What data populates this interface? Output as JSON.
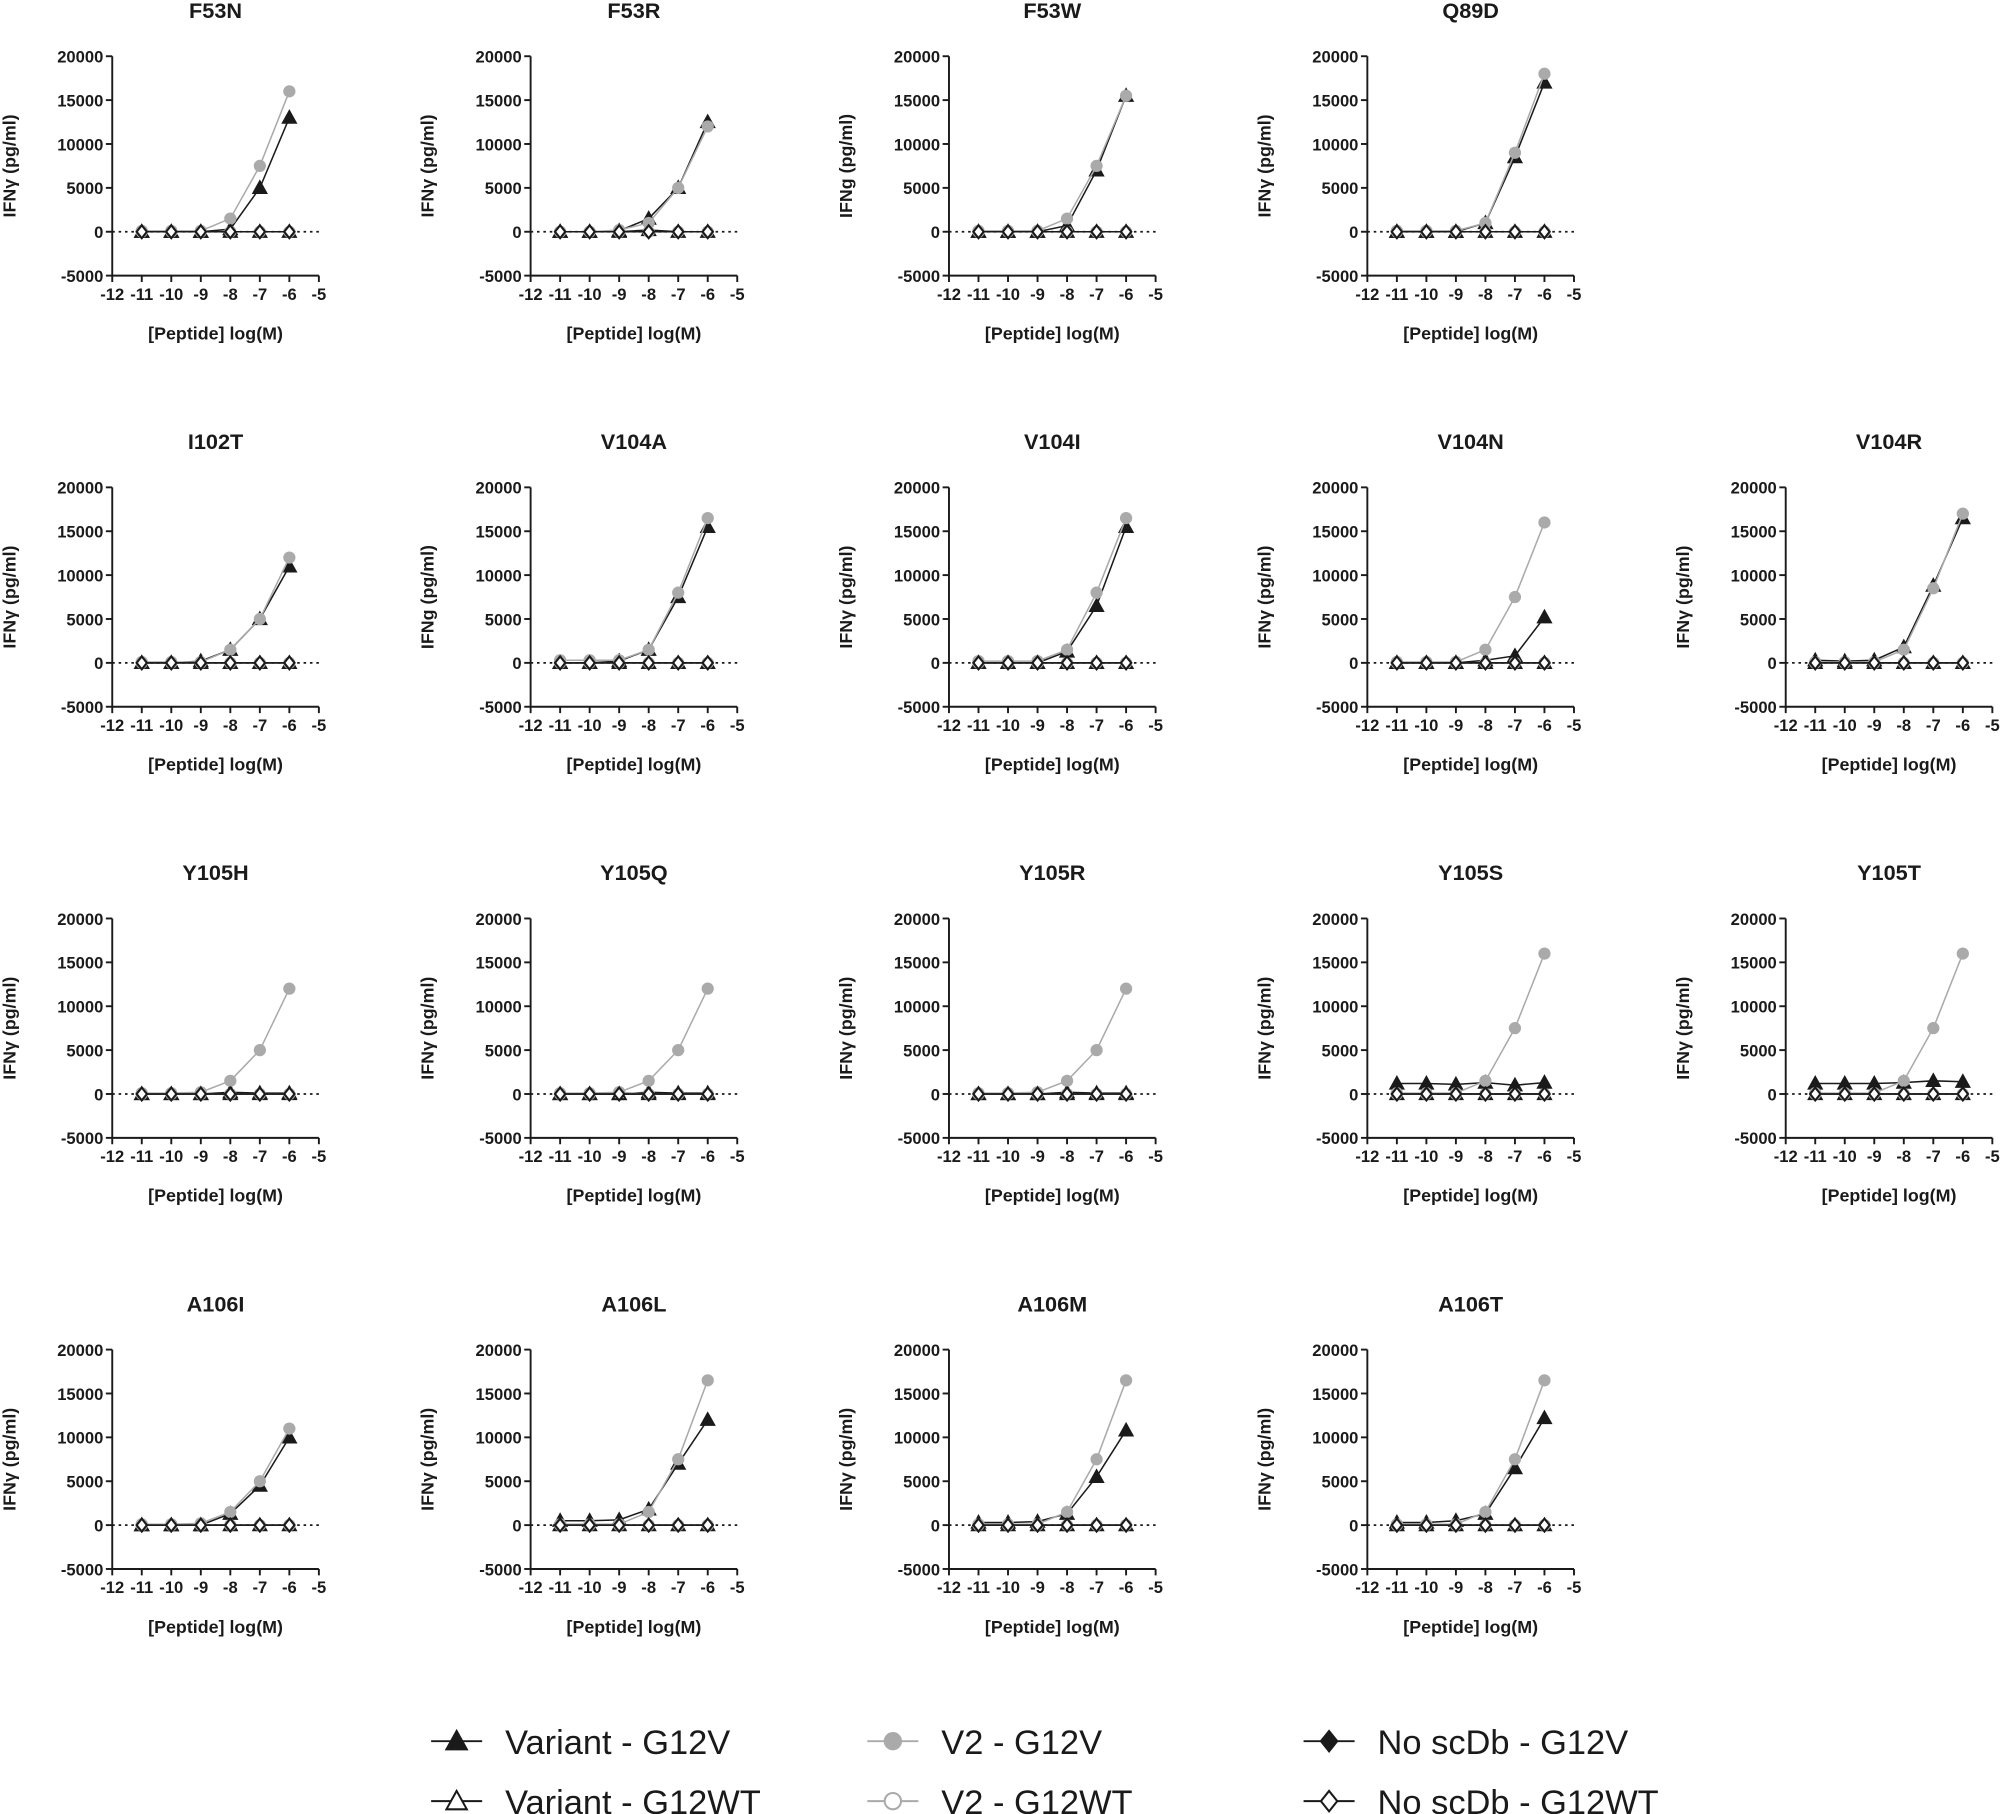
{
  "axes": {
    "xlabel": "[Peptide] log(M)",
    "x": [
      -11,
      -10,
      -9,
      -8,
      -7,
      -6
    ],
    "xlim": [
      -12,
      -5
    ],
    "xticks": [
      -12,
      -11,
      -10,
      -9,
      -8,
      -7,
      -6,
      -5
    ],
    "ylim": [
      -5000,
      20000
    ],
    "yticks": [
      -5000,
      0,
      5000,
      10000,
      15000,
      20000
    ]
  },
  "legend": [
    {
      "name": "Variant - G12V",
      "color": "#1a1a1a",
      "marker": "triangle",
      "open": false
    },
    {
      "name": "Variant - G12WT",
      "color": "#1a1a1a",
      "marker": "triangle",
      "open": true
    },
    {
      "name": "V2 - G12V",
      "color": "#aaaaaa",
      "marker": "circle",
      "open": false
    },
    {
      "name": "V2 - G12WT",
      "color": "#aaaaaa",
      "marker": "circle",
      "open": true
    },
    {
      "name": "No scDb - G12V",
      "color": "#1a1a1a",
      "marker": "diamond",
      "open": false
    },
    {
      "name": "No scDb - G12WT",
      "color": "#1a1a1a",
      "marker": "diamond",
      "open": true
    }
  ],
  "chart_data": [
    {
      "type": "line",
      "title": "F53N",
      "ylabel": "IFNγ (pg/ml)",
      "series": [
        {
          "values": [
            0,
            0,
            0,
            300,
            5000,
            13000
          ]
        },
        {
          "values": [
            0,
            0,
            0,
            0,
            0,
            0
          ]
        },
        {
          "values": [
            100,
            100,
            100,
            1500,
            7500,
            16000
          ]
        },
        {
          "values": [
            0,
            0,
            0,
            0,
            0,
            0
          ]
        },
        {
          "values": [
            0,
            0,
            0,
            0,
            0,
            0
          ]
        },
        {
          "values": [
            0,
            0,
            0,
            0,
            0,
            0
          ]
        }
      ]
    },
    {
      "type": "line",
      "title": "F53R",
      "ylabel": "IFNγ (pg/ml)",
      "series": [
        {
          "values": [
            0,
            0,
            100,
            1500,
            5000,
            12500
          ]
        },
        {
          "values": [
            0,
            0,
            0,
            200,
            0,
            0
          ]
        },
        {
          "values": [
            0,
            0,
            200,
            1000,
            5000,
            12000
          ]
        },
        {
          "values": [
            0,
            0,
            0,
            0,
            0,
            0
          ]
        },
        {
          "values": [
            0,
            0,
            0,
            0,
            0,
            0
          ]
        },
        {
          "values": [
            0,
            0,
            0,
            0,
            0,
            0
          ]
        }
      ]
    },
    {
      "type": "line",
      "title": "F53W",
      "ylabel": "IFNg (pg/ml)",
      "series": [
        {
          "values": [
            0,
            0,
            0,
            700,
            7000,
            15500
          ]
        },
        {
          "values": [
            0,
            0,
            0,
            0,
            0,
            0
          ]
        },
        {
          "values": [
            100,
            100,
            100,
            1500,
            7500,
            15500
          ]
        },
        {
          "values": [
            0,
            0,
            0,
            0,
            0,
            0
          ]
        },
        {
          "values": [
            0,
            0,
            0,
            0,
            0,
            0
          ]
        },
        {
          "values": [
            0,
            0,
            0,
            0,
            0,
            0
          ]
        }
      ]
    },
    {
      "type": "line",
      "title": "Q89D",
      "ylabel": "IFNγ (pg/ml)",
      "series": [
        {
          "values": [
            0,
            0,
            0,
            1000,
            8500,
            17000
          ]
        },
        {
          "values": [
            0,
            0,
            0,
            0,
            0,
            0
          ]
        },
        {
          "values": [
            100,
            100,
            100,
            1000,
            9000,
            18000
          ]
        },
        {
          "values": [
            0,
            0,
            0,
            0,
            0,
            0
          ]
        },
        {
          "values": [
            0,
            0,
            0,
            0,
            0,
            0
          ]
        },
        {
          "values": [
            0,
            0,
            0,
            0,
            0,
            0
          ]
        }
      ]
    },
    {
      "type": "line",
      "title": "I102T",
      "ylabel": "IFNγ (pg/ml)",
      "series": [
        {
          "values": [
            0,
            0,
            200,
            1500,
            5000,
            11000
          ]
        },
        {
          "values": [
            0,
            0,
            0,
            0,
            0,
            0
          ]
        },
        {
          "values": [
            100,
            100,
            100,
            1500,
            5000,
            12000
          ]
        },
        {
          "values": [
            0,
            0,
            0,
            0,
            0,
            0
          ]
        },
        {
          "values": [
            0,
            0,
            0,
            0,
            0,
            0
          ]
        },
        {
          "values": [
            0,
            0,
            0,
            0,
            0,
            0
          ]
        }
      ]
    },
    {
      "type": "line",
      "title": "V104A",
      "ylabel": "IFNg (pg/ml)",
      "series": [
        {
          "values": [
            0,
            0,
            200,
            1500,
            7500,
            15500
          ]
        },
        {
          "values": [
            0,
            0,
            0,
            0,
            0,
            0
          ]
        },
        {
          "values": [
            300,
            300,
            300,
            1500,
            8000,
            16500
          ]
        },
        {
          "values": [
            0,
            0,
            0,
            0,
            0,
            0
          ]
        },
        {
          "values": [
            0,
            0,
            0,
            0,
            0,
            0
          ]
        },
        {
          "values": [
            0,
            0,
            0,
            0,
            0,
            0
          ]
        }
      ]
    },
    {
      "type": "line",
      "title": "V104I",
      "ylabel": "IFNγ (pg/ml)",
      "series": [
        {
          "values": [
            0,
            0,
            0,
            1300,
            6500,
            15500
          ]
        },
        {
          "values": [
            0,
            0,
            0,
            0,
            0,
            0
          ]
        },
        {
          "values": [
            200,
            200,
            200,
            1500,
            8000,
            16500
          ]
        },
        {
          "values": [
            0,
            0,
            0,
            0,
            0,
            0
          ]
        },
        {
          "values": [
            0,
            0,
            0,
            0,
            0,
            0
          ]
        },
        {
          "values": [
            0,
            0,
            0,
            0,
            0,
            0
          ]
        }
      ]
    },
    {
      "type": "line",
      "title": "V104N",
      "ylabel": "IFNγ (pg/ml)",
      "series": [
        {
          "values": [
            0,
            0,
            0,
            300,
            800,
            5200
          ]
        },
        {
          "values": [
            0,
            0,
            0,
            0,
            0,
            0
          ]
        },
        {
          "values": [
            100,
            100,
            100,
            1500,
            7500,
            16000
          ]
        },
        {
          "values": [
            0,
            0,
            0,
            0,
            0,
            0
          ]
        },
        {
          "values": [
            0,
            0,
            0,
            0,
            0,
            0
          ]
        },
        {
          "values": [
            0,
            0,
            0,
            0,
            0,
            0
          ]
        }
      ]
    },
    {
      "type": "line",
      "title": "V104R",
      "ylabel": "IFNγ (pg/ml)",
      "series": [
        {
          "values": [
            300,
            200,
            300,
            1800,
            8800,
            16500
          ]
        },
        {
          "values": [
            0,
            0,
            0,
            0,
            0,
            0
          ]
        },
        {
          "values": [
            100,
            100,
            100,
            1500,
            8500,
            17000
          ]
        },
        {
          "values": [
            0,
            0,
            0,
            0,
            0,
            0
          ]
        },
        {
          "values": [
            0,
            0,
            0,
            0,
            0,
            0
          ]
        },
        {
          "values": [
            0,
            0,
            0,
            0,
            0,
            0
          ]
        }
      ]
    },
    {
      "type": "line",
      "title": "Y105H",
      "ylabel": "IFNγ (pg/ml)",
      "series": [
        {
          "values": [
            0,
            0,
            0,
            200,
            100,
            100
          ]
        },
        {
          "values": [
            0,
            0,
            0,
            0,
            0,
            0
          ]
        },
        {
          "values": [
            100,
            100,
            200,
            1500,
            5000,
            12000
          ]
        },
        {
          "values": [
            0,
            0,
            0,
            0,
            0,
            0
          ]
        },
        {
          "values": [
            0,
            0,
            0,
            0,
            0,
            0
          ]
        },
        {
          "values": [
            0,
            0,
            0,
            0,
            0,
            0
          ]
        }
      ]
    },
    {
      "type": "line",
      "title": "Y105Q",
      "ylabel": "IFNγ (pg/ml)",
      "series": [
        {
          "values": [
            0,
            0,
            0,
            200,
            100,
            100
          ]
        },
        {
          "values": [
            0,
            0,
            0,
            0,
            0,
            0
          ]
        },
        {
          "values": [
            100,
            100,
            200,
            1500,
            5000,
            12000
          ]
        },
        {
          "values": [
            0,
            0,
            200,
            0,
            0,
            0
          ]
        },
        {
          "values": [
            0,
            0,
            0,
            0,
            0,
            0
          ]
        },
        {
          "values": [
            0,
            0,
            0,
            0,
            0,
            0
          ]
        }
      ]
    },
    {
      "type": "line",
      "title": "Y105R",
      "ylabel": "IFNγ (pg/ml)",
      "series": [
        {
          "values": [
            0,
            0,
            0,
            200,
            100,
            100
          ]
        },
        {
          "values": [
            0,
            0,
            0,
            0,
            0,
            0
          ]
        },
        {
          "values": [
            100,
            100,
            200,
            1500,
            5000,
            12000
          ]
        },
        {
          "values": [
            0,
            0,
            0,
            0,
            0,
            0
          ]
        },
        {
          "values": [
            0,
            0,
            0,
            0,
            0,
            0
          ]
        },
        {
          "values": [
            0,
            0,
            0,
            0,
            0,
            0
          ]
        }
      ]
    },
    {
      "type": "line",
      "title": "Y105S",
      "ylabel": "IFNγ (pg/ml)",
      "series": [
        {
          "values": [
            1200,
            1200,
            1100,
            1300,
            1000,
            1300
          ]
        },
        {
          "values": [
            0,
            0,
            0,
            0,
            0,
            0
          ]
        },
        {
          "values": [
            100,
            100,
            100,
            1500,
            7500,
            16000
          ]
        },
        {
          "values": [
            0,
            0,
            0,
            0,
            0,
            0
          ]
        },
        {
          "values": [
            0,
            0,
            0,
            0,
            0,
            0
          ]
        },
        {
          "values": [
            0,
            0,
            0,
            0,
            0,
            0
          ]
        }
      ]
    },
    {
      "type": "line",
      "title": "Y105T",
      "ylabel": "IFNγ (pg/ml)",
      "series": [
        {
          "values": [
            1200,
            1200,
            1200,
            1300,
            1500,
            1400
          ]
        },
        {
          "values": [
            0,
            0,
            0,
            0,
            0,
            0
          ]
        },
        {
          "values": [
            100,
            100,
            100,
            1500,
            7500,
            16000
          ]
        },
        {
          "values": [
            0,
            0,
            0,
            0,
            0,
            0
          ]
        },
        {
          "values": [
            0,
            0,
            0,
            0,
            0,
            0
          ]
        },
        {
          "values": [
            0,
            0,
            0,
            0,
            0,
            0
          ]
        }
      ]
    },
    {
      "type": "line",
      "title": "A106I",
      "ylabel": "IFNγ (pg/ml)",
      "series": [
        {
          "values": [
            0,
            0,
            0,
            1300,
            4500,
            10000
          ]
        },
        {
          "values": [
            0,
            0,
            0,
            0,
            0,
            0
          ]
        },
        {
          "values": [
            100,
            100,
            200,
            1500,
            5000,
            11000
          ]
        },
        {
          "values": [
            0,
            0,
            0,
            0,
            0,
            0
          ]
        },
        {
          "values": [
            0,
            0,
            0,
            0,
            0,
            0
          ]
        },
        {
          "values": [
            0,
            0,
            0,
            0,
            0,
            0
          ]
        }
      ]
    },
    {
      "type": "line",
      "title": "A106L",
      "ylabel": "IFNγ (pg/ml)",
      "series": [
        {
          "values": [
            500,
            500,
            600,
            1800,
            7000,
            12000
          ]
        },
        {
          "values": [
            0,
            0,
            0,
            0,
            0,
            0
          ]
        },
        {
          "values": [
            100,
            100,
            100,
            1500,
            7500,
            16500
          ]
        },
        {
          "values": [
            0,
            0,
            0,
            0,
            0,
            0
          ]
        },
        {
          "values": [
            0,
            0,
            0,
            0,
            0,
            0
          ]
        },
        {
          "values": [
            0,
            0,
            0,
            0,
            0,
            0
          ]
        }
      ]
    },
    {
      "type": "line",
      "title": "A106M",
      "ylabel": "IFNγ (pg/ml)",
      "series": [
        {
          "values": [
            300,
            300,
            400,
            1300,
            5500,
            10800
          ]
        },
        {
          "values": [
            0,
            0,
            0,
            0,
            0,
            0
          ]
        },
        {
          "values": [
            100,
            100,
            100,
            1500,
            7500,
            16500
          ]
        },
        {
          "values": [
            0,
            0,
            0,
            0,
            0,
            0
          ]
        },
        {
          "values": [
            0,
            0,
            0,
            0,
            0,
            0
          ]
        },
        {
          "values": [
            0,
            0,
            0,
            0,
            0,
            0
          ]
        }
      ]
    },
    {
      "type": "line",
      "title": "A106T",
      "ylabel": "IFNγ (pg/ml)",
      "series": [
        {
          "values": [
            300,
            300,
            500,
            1300,
            6500,
            12200
          ]
        },
        {
          "values": [
            0,
            0,
            0,
            0,
            0,
            0
          ]
        },
        {
          "values": [
            100,
            100,
            100,
            1500,
            7500,
            16500
          ]
        },
        {
          "values": [
            0,
            0,
            0,
            0,
            0,
            0
          ]
        },
        {
          "values": [
            0,
            0,
            0,
            0,
            0,
            0
          ]
        },
        {
          "values": [
            0,
            0,
            0,
            0,
            0,
            0
          ]
        }
      ]
    }
  ]
}
